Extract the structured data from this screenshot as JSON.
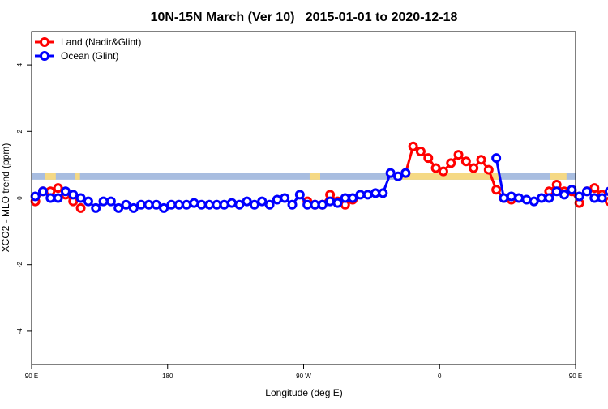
{
  "chart_data": {
    "type": "line",
    "title": "10N-15N March (Ver 10)   2015-01-01 to 2020-12-18",
    "xlabel": "Longitude (deg E)",
    "ylabel": "XCO2 - MLO trend (ppm)",
    "xlim": [
      90,
      450
    ],
    "ylim": [
      -5,
      5
    ],
    "x_ticks": [
      {
        "value": 90,
        "label": "90 E"
      },
      {
        "value": 180,
        "label": "180"
      },
      {
        "value": 270,
        "label": "90 W"
      },
      {
        "value": 360,
        "label": "0"
      },
      {
        "value": 450,
        "label": "90 E"
      },
      {
        "value": 540,
        "label": "180"
      }
    ],
    "y_ticks": [
      -4,
      -2,
      0,
      2,
      4
    ],
    "grid": false,
    "legend_position": "top-left",
    "band": {
      "ymin": 0.55,
      "ymax": 0.75,
      "ocean_color": "#a8bde0",
      "land_color": "#f5d985"
    },
    "land_band_segments": [
      [
        99,
        106
      ],
      [
        119,
        122
      ],
      [
        274,
        281
      ],
      [
        335,
        399
      ],
      [
        433,
        444
      ],
      [
        459,
        469
      ],
      [
        478,
        481
      ]
    ],
    "series": [
      {
        "name": "Land (Nadir&Glint)",
        "color": "#ff0000",
        "segments": [
          {
            "x": [
              92.5,
              97.5,
              102.5,
              107.5,
              112.5,
              117.5
            ],
            "y": [
              -0.1,
              0.2,
              0.2,
              0.3,
              0.1,
              -0.1
            ]
          },
          {
            "x": [
              122.5
            ],
            "y": [
              -0.3
            ]
          },
          {
            "x": [
              272.5,
              277.5,
              282.5,
              287.5,
              292.5,
              297.5
            ],
            "y": [
              -0.1,
              -0.2,
              -0.2,
              0.1,
              -0.1,
              -0.2
            ]
          },
          {
            "x": [
              302.5
            ],
            "y": [
              -0.05
            ]
          },
          {
            "x": [
              337.5,
              342.5,
              347.5,
              352.5,
              357.5,
              362.5,
              367.5,
              372.5,
              377.5,
              382.5,
              387.5,
              392.5,
              397.5,
              402.5,
              407.5
            ],
            "y": [
              0.75,
              1.55,
              1.4,
              1.2,
              0.9,
              0.8,
              1.05,
              1.3,
              1.1,
              0.9,
              1.15,
              0.85,
              0.25,
              0.0,
              -0.05
            ]
          },
          {
            "x": [
              432.5,
              437.5,
              442.5,
              447.5,
              452.5
            ],
            "y": [
              0.2,
              0.4,
              0.2,
              0.2,
              -0.15
            ]
          },
          {
            "x": [
              457.5,
              462.5,
              467.5,
              472.5,
              477.5,
              482.5
            ],
            "y": [
              0.2,
              0.3,
              0.1,
              -0.1,
              -0.3,
              -0.25
            ]
          }
        ]
      },
      {
        "name": "Ocean (Glint)",
        "color": "#0000ff",
        "segments": [
          {
            "x": [
              92.5,
              97.5,
              102.5,
              107.5,
              112.5,
              117.5,
              122.5,
              127.5,
              132.5,
              137.5,
              142.5,
              147.5,
              152.5,
              157.5,
              162.5,
              167.5,
              172.5,
              177.5,
              182.5,
              187.5,
              192.5,
              197.5,
              202.5,
              207.5,
              212.5,
              217.5,
              222.5,
              227.5,
              232.5,
              237.5,
              242.5,
              247.5,
              252.5,
              257.5,
              262.5,
              267.5,
              272.5,
              277.5,
              282.5,
              287.5,
              292.5,
              297.5,
              302.5,
              307.5,
              312.5,
              317.5,
              322.5,
              327.5,
              332.5,
              337.5
            ],
            "y": [
              0.05,
              0.2,
              0.0,
              0.0,
              0.2,
              0.1,
              0.0,
              -0.1,
              -0.3,
              -0.1,
              -0.1,
              -0.3,
              -0.2,
              -0.3,
              -0.2,
              -0.2,
              -0.2,
              -0.3,
              -0.2,
              -0.2,
              -0.2,
              -0.15,
              -0.2,
              -0.2,
              -0.2,
              -0.2,
              -0.15,
              -0.2,
              -0.1,
              -0.2,
              -0.1,
              -0.2,
              -0.05,
              0.0,
              -0.2,
              0.1,
              -0.2,
              -0.2,
              -0.2,
              -0.1,
              -0.15,
              0.0,
              0.0,
              0.1,
              0.1,
              0.15,
              0.15,
              0.75,
              0.65,
              0.75
            ]
          },
          {
            "x": [
              397.5,
              402.5,
              407.5,
              412.5,
              417.5,
              422.5,
              427.5,
              432.5,
              437.5,
              442.5,
              447.5,
              452.5,
              457.5,
              462.5,
              467.5,
              472.5,
              477.5,
              482.5,
              487.5,
              492.5,
              497.5,
              502.5,
              507.5,
              512.5,
              517.5,
              522.5,
              527.5,
              532.5,
              537.5
            ],
            "y": [
              1.2,
              0.0,
              0.05,
              0.0,
              -0.05,
              -0.1,
              0.0,
              0.0,
              0.2,
              0.1,
              0.25,
              0.05,
              0.2,
              0.0,
              0.0,
              0.2,
              0.1,
              0.0,
              -0.05,
              -0.2,
              -0.1,
              -0.1,
              -0.3,
              -0.2,
              -0.3,
              -0.2,
              -0.2,
              -0.2,
              -0.3
            ]
          }
        ]
      }
    ]
  }
}
